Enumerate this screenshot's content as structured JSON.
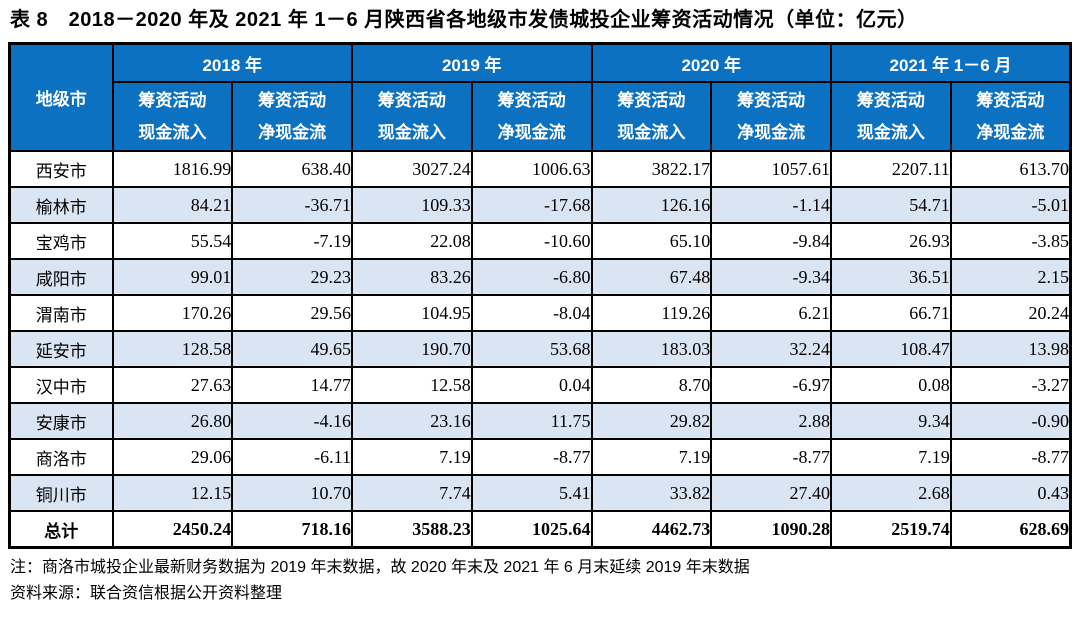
{
  "title": "表 8　2018－2020 年及 2021 年 1－6 月陕西省各地级市发债城投企业筹资活动情况（单位：亿元）",
  "colors": {
    "header_bg": "#0D71C1",
    "header_text": "#FFFFFF",
    "alt_row_bg": "#D9E5F3",
    "border": "#000000"
  },
  "table": {
    "corner_header": "地级市",
    "year_groups": [
      "2018 年",
      "2019 年",
      "2020 年",
      "2021 年 1－6 月"
    ],
    "sub_columns": {
      "line1": "筹资活动",
      "inflow": "现金流入",
      "net": "净现金流"
    },
    "rows": [
      {
        "city": "西安市",
        "values": [
          "1816.99",
          "638.40",
          "3027.24",
          "1006.63",
          "3822.17",
          "1057.61",
          "2207.11",
          "613.70"
        ]
      },
      {
        "city": "榆林市",
        "values": [
          "84.21",
          "-36.71",
          "109.33",
          "-17.68",
          "126.16",
          "-1.14",
          "54.71",
          "-5.01"
        ]
      },
      {
        "city": "宝鸡市",
        "values": [
          "55.54",
          "-7.19",
          "22.08",
          "-10.60",
          "65.10",
          "-9.84",
          "26.93",
          "-3.85"
        ]
      },
      {
        "city": "咸阳市",
        "values": [
          "99.01",
          "29.23",
          "83.26",
          "-6.80",
          "67.48",
          "-9.34",
          "36.51",
          "2.15"
        ]
      },
      {
        "city": "渭南市",
        "values": [
          "170.26",
          "29.56",
          "104.95",
          "-8.04",
          "119.26",
          "6.21",
          "66.71",
          "20.24"
        ]
      },
      {
        "city": "延安市",
        "values": [
          "128.58",
          "49.65",
          "190.70",
          "53.68",
          "183.03",
          "32.24",
          "108.47",
          "13.98"
        ]
      },
      {
        "city": "汉中市",
        "values": [
          "27.63",
          "14.77",
          "12.58",
          "0.04",
          "8.70",
          "-6.97",
          "0.08",
          "-3.27"
        ]
      },
      {
        "city": "安康市",
        "values": [
          "26.80",
          "-4.16",
          "23.16",
          "11.75",
          "29.82",
          "2.88",
          "9.34",
          "-0.90"
        ]
      },
      {
        "city": "商洛市",
        "values": [
          "29.06",
          "-6.11",
          "7.19",
          "-8.77",
          "7.19",
          "-8.77",
          "7.19",
          "-8.77"
        ]
      },
      {
        "city": "铜川市",
        "values": [
          "12.15",
          "10.70",
          "7.74",
          "5.41",
          "33.82",
          "27.40",
          "2.68",
          "0.43"
        ]
      }
    ],
    "total_row": {
      "city": "总计",
      "values": [
        "2450.24",
        "718.16",
        "3588.23",
        "1025.64",
        "4462.73",
        "1090.28",
        "2519.74",
        "628.69"
      ]
    }
  },
  "notes": [
    "注：商洛市城投企业最新财务数据为 2019 年末数据，故 2020 年末及 2021 年 6 月末延续 2019 年末数据",
    "资料来源：联合资信根据公开资料整理"
  ]
}
